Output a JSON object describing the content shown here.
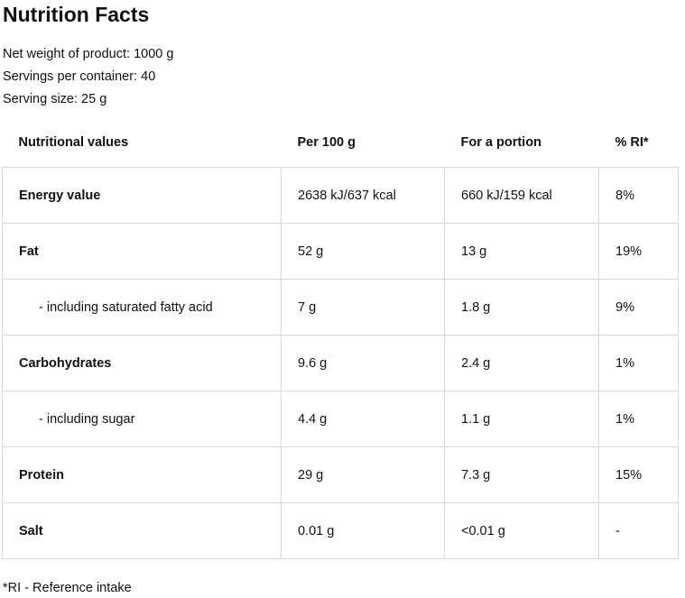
{
  "title": "Nutrition Facts",
  "meta": {
    "net_weight": "Net weight of product: 1000 g",
    "servings_per_container": "Servings per container: 40",
    "serving_size": "Serving size: 25 g"
  },
  "table": {
    "headers": [
      "Nutritional values",
      "Per 100 g",
      "For a portion",
      "% RI*"
    ],
    "rows": [
      {
        "label": "Energy value",
        "per_100g": "2638 kJ/637 kcal",
        "portion": "660 kJ/159 kcal",
        "ri": "8%"
      },
      {
        "label": "Fat",
        "per_100g": "52 g",
        "portion": "13 g",
        "ri": "19%"
      },
      {
        "label": "- including saturated fatty acid",
        "per_100g": "7 g",
        "portion": "1.8 g",
        "ri": "9%"
      },
      {
        "label": "Carbohydrates",
        "per_100g": "9.6 g",
        "portion": "2.4 g",
        "ri": "1%"
      },
      {
        "label": "- including sugar",
        "per_100g": "4.4 g",
        "portion": "1.1 g",
        "ri": "1%"
      },
      {
        "label": "Protein",
        "per_100g": "29 g",
        "portion": "7.3 g",
        "ri": "15%"
      },
      {
        "label": "Salt",
        "per_100g": "0.01 g",
        "portion": "<0.01 g",
        "ri": "-"
      }
    ]
  },
  "footnote": "*RI - Reference intake"
}
